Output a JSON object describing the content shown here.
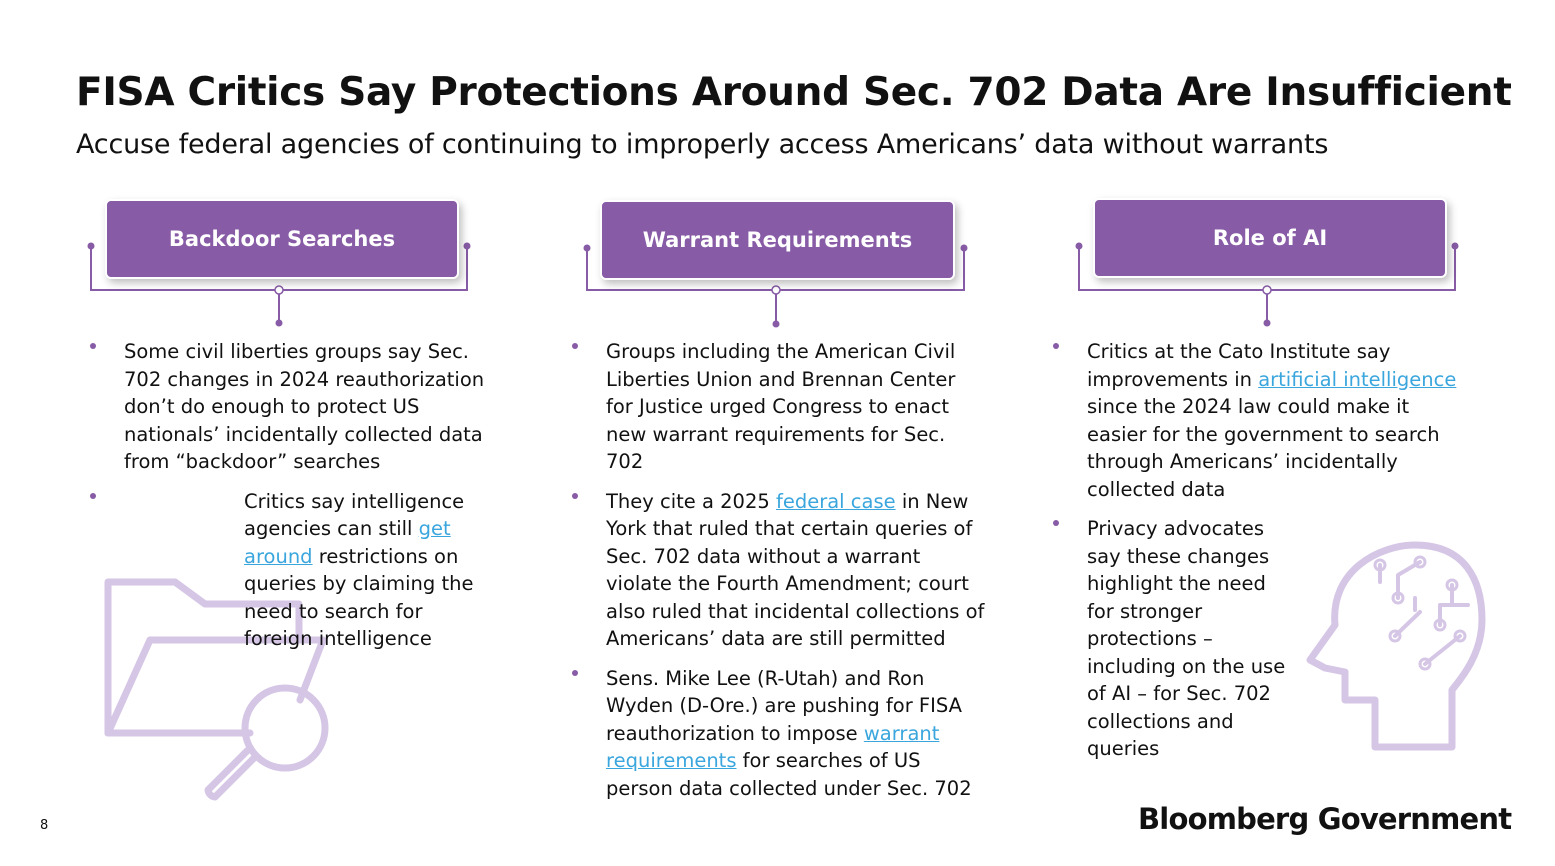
{
  "header": {
    "title": "FISA Critics Say Protections Around Sec. 702 Data Are Insufficient",
    "subtitle": "Accuse federal agencies of continuing to improperly access Americans’ data without warrants"
  },
  "columns": [
    {
      "heading": "Backdoor Searches",
      "bullets": [
        [
          "Some civil liberties groups say Sec. 702 changes in 2024 reauthorization don’t do enough to protect US nationals’ incidentally collected data from “backdoor” searches"
        ],
        [
          "Critics say intelligence agencies can still ",
          {
            "link": "get around"
          },
          " restrictions on queries by claiming the need to search for foreign intelligence"
        ]
      ]
    },
    {
      "heading": "Warrant Requirements",
      "bullets": [
        [
          "Groups including the American Civil Liberties Union and Brennan Center for Justice urged Congress to enact new warrant requirements for Sec. 702"
        ],
        [
          "They cite a 2025 ",
          {
            "link": "federal case"
          },
          " in New York that ruled that certain queries of Sec. 702 data without a warrant violate the Fourth Amendment; court also ruled that incidental collections of Americans’ data are still permitted"
        ],
        [
          "Sens. Mike Lee (R-Utah) and Ron Wyden (D-Ore.) are pushing for FISA reauthorization to impose ",
          {
            "link": "warrant requirements"
          },
          " for searches of US person data collected under Sec. 702"
        ]
      ]
    },
    {
      "heading": "Role of AI",
      "bullets": [
        [
          "Critics at the Cato Institute say improvements in ",
          {
            "link": "artificial intelligence"
          },
          " since the 2024 law could make it easier for the government to search through Americans’ incidentally collected data"
        ],
        [
          "Privacy advocates say these changes highlight the need for stronger protections – including on the use of AI – for Sec. 702 collections and queries"
        ]
      ]
    }
  ],
  "footer": {
    "page": "8",
    "brand": "Bloomberg Government"
  }
}
